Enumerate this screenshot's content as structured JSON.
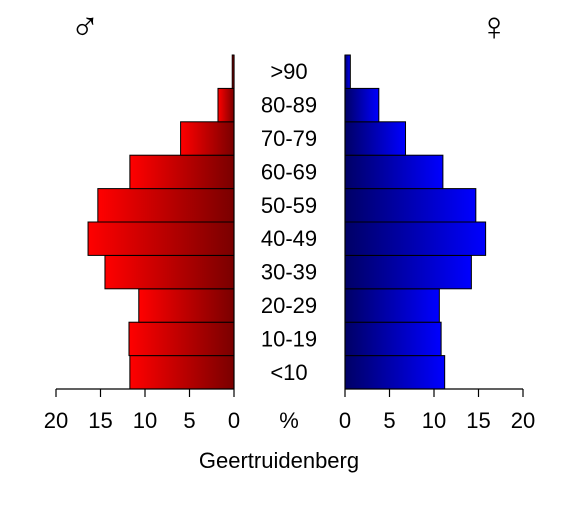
{
  "chart_data": {
    "type": "bar",
    "orientation": "horizontal",
    "layout": "population-pyramid",
    "title": "Geertruidenberg",
    "unit_label": "%",
    "male_symbol": "♂",
    "female_symbol": "♀",
    "categories": [
      "<10",
      "10-19",
      "20-29",
      "30-39",
      "40-49",
      "50-59",
      "60-69",
      "70-79",
      "80-89",
      ">90"
    ],
    "series": [
      {
        "values": [
          11.7,
          11.8,
          10.7,
          14.5,
          16.4,
          15.3,
          11.7,
          6.0,
          1.8,
          0.2
        ]
      },
      {
        "values": [
          11.2,
          10.8,
          10.6,
          14.2,
          15.8,
          14.7,
          11.0,
          6.8,
          3.8,
          0.6
        ]
      }
    ],
    "xlim": [
      0,
      20
    ],
    "xticks": [
      0,
      5,
      10,
      15,
      20
    ],
    "xtick_labels_left": [
      "20",
      "15",
      "10",
      "5",
      "0"
    ],
    "xtick_labels_right": [
      "0",
      "5",
      "10",
      "15",
      "20"
    ],
    "grid": false,
    "colors": {
      "male_light": "#ff0000",
      "male_dark": "#7a0000",
      "female_light": "#0000ff",
      "female_dark": "#000066",
      "outline": "#000000"
    }
  }
}
